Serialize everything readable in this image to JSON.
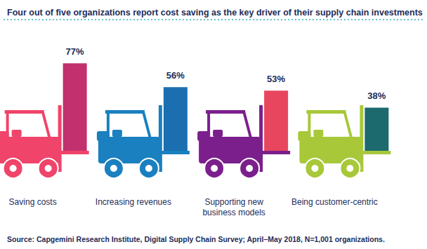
{
  "chart_data": {
    "type": "bar",
    "title": "Four out of five organizations report cost saving as the key driver of their supply chain investments",
    "source": "Source: Capgemini Research Institute, Digital Supply Chain Survey; April–May 2018, N=1,001 organizations.",
    "categories": [
      "Saving costs",
      "Increasing revenues",
      "Supporting new\nbusiness models",
      "Being customer-centric"
    ],
    "values": [
      77,
      56,
      53,
      38
    ],
    "value_labels": [
      "77%",
      "56%",
      "53%",
      "38%"
    ],
    "colors": [
      "#c2306e",
      "#1b6fb0",
      "#e8455f",
      "#1c6a6e"
    ],
    "ylim": [
      0,
      100
    ],
    "yticks": [
      0,
      100
    ],
    "grid": false,
    "data_labels": true,
    "tick_labels": false
  }
}
